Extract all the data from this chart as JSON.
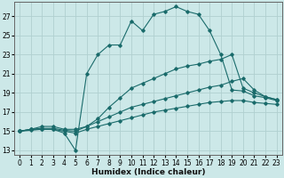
{
  "xlabel": "Humidex (Indice chaleur)",
  "bg_color": "#cce8e8",
  "line_color": "#1a6b6b",
  "grid_color": "#b0d0d0",
  "xlim": [
    -0.5,
    23.5
  ],
  "ylim": [
    12.5,
    28.5
  ],
  "yticks": [
    13,
    15,
    17,
    19,
    21,
    23,
    25,
    27
  ],
  "xticks": [
    0,
    1,
    2,
    3,
    4,
    5,
    6,
    7,
    8,
    9,
    10,
    11,
    12,
    13,
    14,
    15,
    16,
    17,
    18,
    19,
    20,
    21,
    22,
    23
  ],
  "lines": [
    {
      "x": [
        0,
        1,
        2,
        3,
        4,
        5,
        6,
        7,
        8,
        9,
        10,
        11,
        12,
        13,
        14,
        15,
        16,
        17,
        18,
        19,
        20,
        21,
        22,
        23
      ],
      "y": [
        15,
        15.2,
        15.2,
        15.2,
        14.8,
        13.0,
        21.0,
        23.0,
        24.0,
        24.0,
        26.5,
        25.5,
        27.2,
        27.5,
        28.0,
        27.5,
        27.2,
        25.5,
        23.0,
        19.3,
        19.2,
        18.7,
        18.5,
        18.2
      ]
    },
    {
      "x": [
        0,
        1,
        2,
        3,
        4,
        5,
        6,
        7,
        8,
        9,
        10,
        11,
        12,
        13,
        14,
        15,
        16,
        17,
        18,
        19,
        20,
        21,
        22,
        23
      ],
      "y": [
        15,
        15.2,
        15.5,
        15.5,
        15.2,
        15.2,
        15.5,
        16.3,
        17.5,
        18.5,
        19.5,
        20.0,
        20.5,
        21.0,
        21.5,
        21.8,
        22.0,
        22.3,
        22.5,
        23.0,
        19.5,
        19.0,
        18.6,
        18.3
      ]
    },
    {
      "x": [
        0,
        1,
        2,
        3,
        4,
        5,
        6,
        7,
        8,
        9,
        10,
        11,
        12,
        13,
        14,
        15,
        16,
        17,
        18,
        19,
        20,
        21,
        22,
        23
      ],
      "y": [
        15,
        15.2,
        15.3,
        15.3,
        15.1,
        15.0,
        15.5,
        16.0,
        16.5,
        17.0,
        17.5,
        17.8,
        18.1,
        18.4,
        18.7,
        19.0,
        19.3,
        19.6,
        19.8,
        20.2,
        20.5,
        19.3,
        18.6,
        18.3
      ]
    },
    {
      "x": [
        0,
        1,
        2,
        3,
        4,
        5,
        6,
        7,
        8,
        9,
        10,
        11,
        12,
        13,
        14,
        15,
        16,
        17,
        18,
        19,
        20,
        21,
        22,
        23
      ],
      "y": [
        15,
        15.1,
        15.2,
        15.2,
        15.0,
        14.8,
        15.2,
        15.5,
        15.8,
        16.1,
        16.4,
        16.7,
        17.0,
        17.2,
        17.4,
        17.6,
        17.8,
        18.0,
        18.1,
        18.2,
        18.2,
        18.0,
        17.9,
        17.8
      ]
    }
  ]
}
